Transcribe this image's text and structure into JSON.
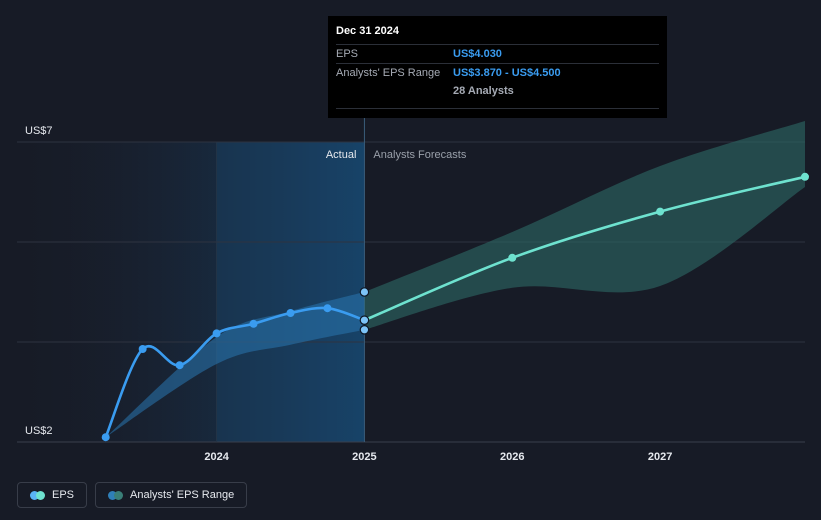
{
  "chart_data": {
    "type": "line",
    "y_labels": [
      "US$7",
      "US$2"
    ],
    "ylim": [
      2,
      7
    ],
    "x_ticks": [
      {
        "label": "2024",
        "x": 2024.0
      },
      {
        "label": "2025",
        "x": 2025.0
      },
      {
        "label": "2026",
        "x": 2026.0
      },
      {
        "label": "2027",
        "x": 2027.0
      }
    ],
    "xlim": [
      2022.65,
      2027.98
    ],
    "region_labels": {
      "actual": "Actual",
      "forecast": "Analysts Forecasts"
    },
    "divider_x": 2025.0,
    "series": [
      {
        "name": "EPS",
        "kind": "actual",
        "color": "#3a9cf0",
        "points": [
          [
            2023.25,
            2.08
          ],
          [
            2023.5,
            3.55
          ],
          [
            2023.75,
            3.28
          ],
          [
            2024.0,
            3.81
          ],
          [
            2024.25,
            3.97
          ],
          [
            2024.5,
            4.15
          ],
          [
            2024.75,
            4.23
          ],
          [
            2025.0,
            4.03
          ]
        ]
      },
      {
        "name": "EPS",
        "kind": "forecast",
        "color": "#6ee2cf",
        "points": [
          [
            2025.0,
            4.03
          ],
          [
            2026.0,
            5.07
          ],
          [
            2027.0,
            5.84
          ],
          [
            2027.98,
            6.42
          ]
        ]
      }
    ],
    "range": {
      "name": "Analysts' EPS Range",
      "actual": {
        "x": [
          2023.25,
          2024.0,
          2024.5,
          2025.0
        ],
        "low": [
          2.08,
          3.3,
          3.62,
          3.87
        ],
        "high": [
          2.08,
          3.75,
          4.18,
          4.5
        ]
      },
      "forecast": {
        "x": [
          2025.0,
          2026.0,
          2027.0,
          2027.98
        ],
        "low": [
          3.87,
          4.57,
          4.6,
          6.25
        ],
        "high": [
          4.5,
          5.5,
          6.6,
          7.35
        ]
      }
    },
    "highlight": {
      "x": 2025.0,
      "values": [
        4.5,
        4.03,
        3.87
      ]
    }
  },
  "tooltip": {
    "date": "Dec 31 2024",
    "eps_label": "EPS",
    "eps_value": "US$4.030",
    "range_label": "Analysts' EPS Range",
    "range_value": "US$3.870 - US$4.500",
    "analysts": "28 Analysts"
  },
  "legend": [
    {
      "label": "EPS",
      "colors": [
        "#5ab3f5",
        "#6ee2cf"
      ]
    },
    {
      "label": "Analysts' EPS Range",
      "colors": [
        "#2f7fb8",
        "#3a7f78"
      ]
    }
  ],
  "colors": {
    "actual_line": "#3a9cf0",
    "forecast_line": "#6ee2cf",
    "actual_band": "#2a76b0",
    "forecast_band": "#2d6b66",
    "grid": "#2e3340",
    "actual_shade": "#1b3a56"
  }
}
